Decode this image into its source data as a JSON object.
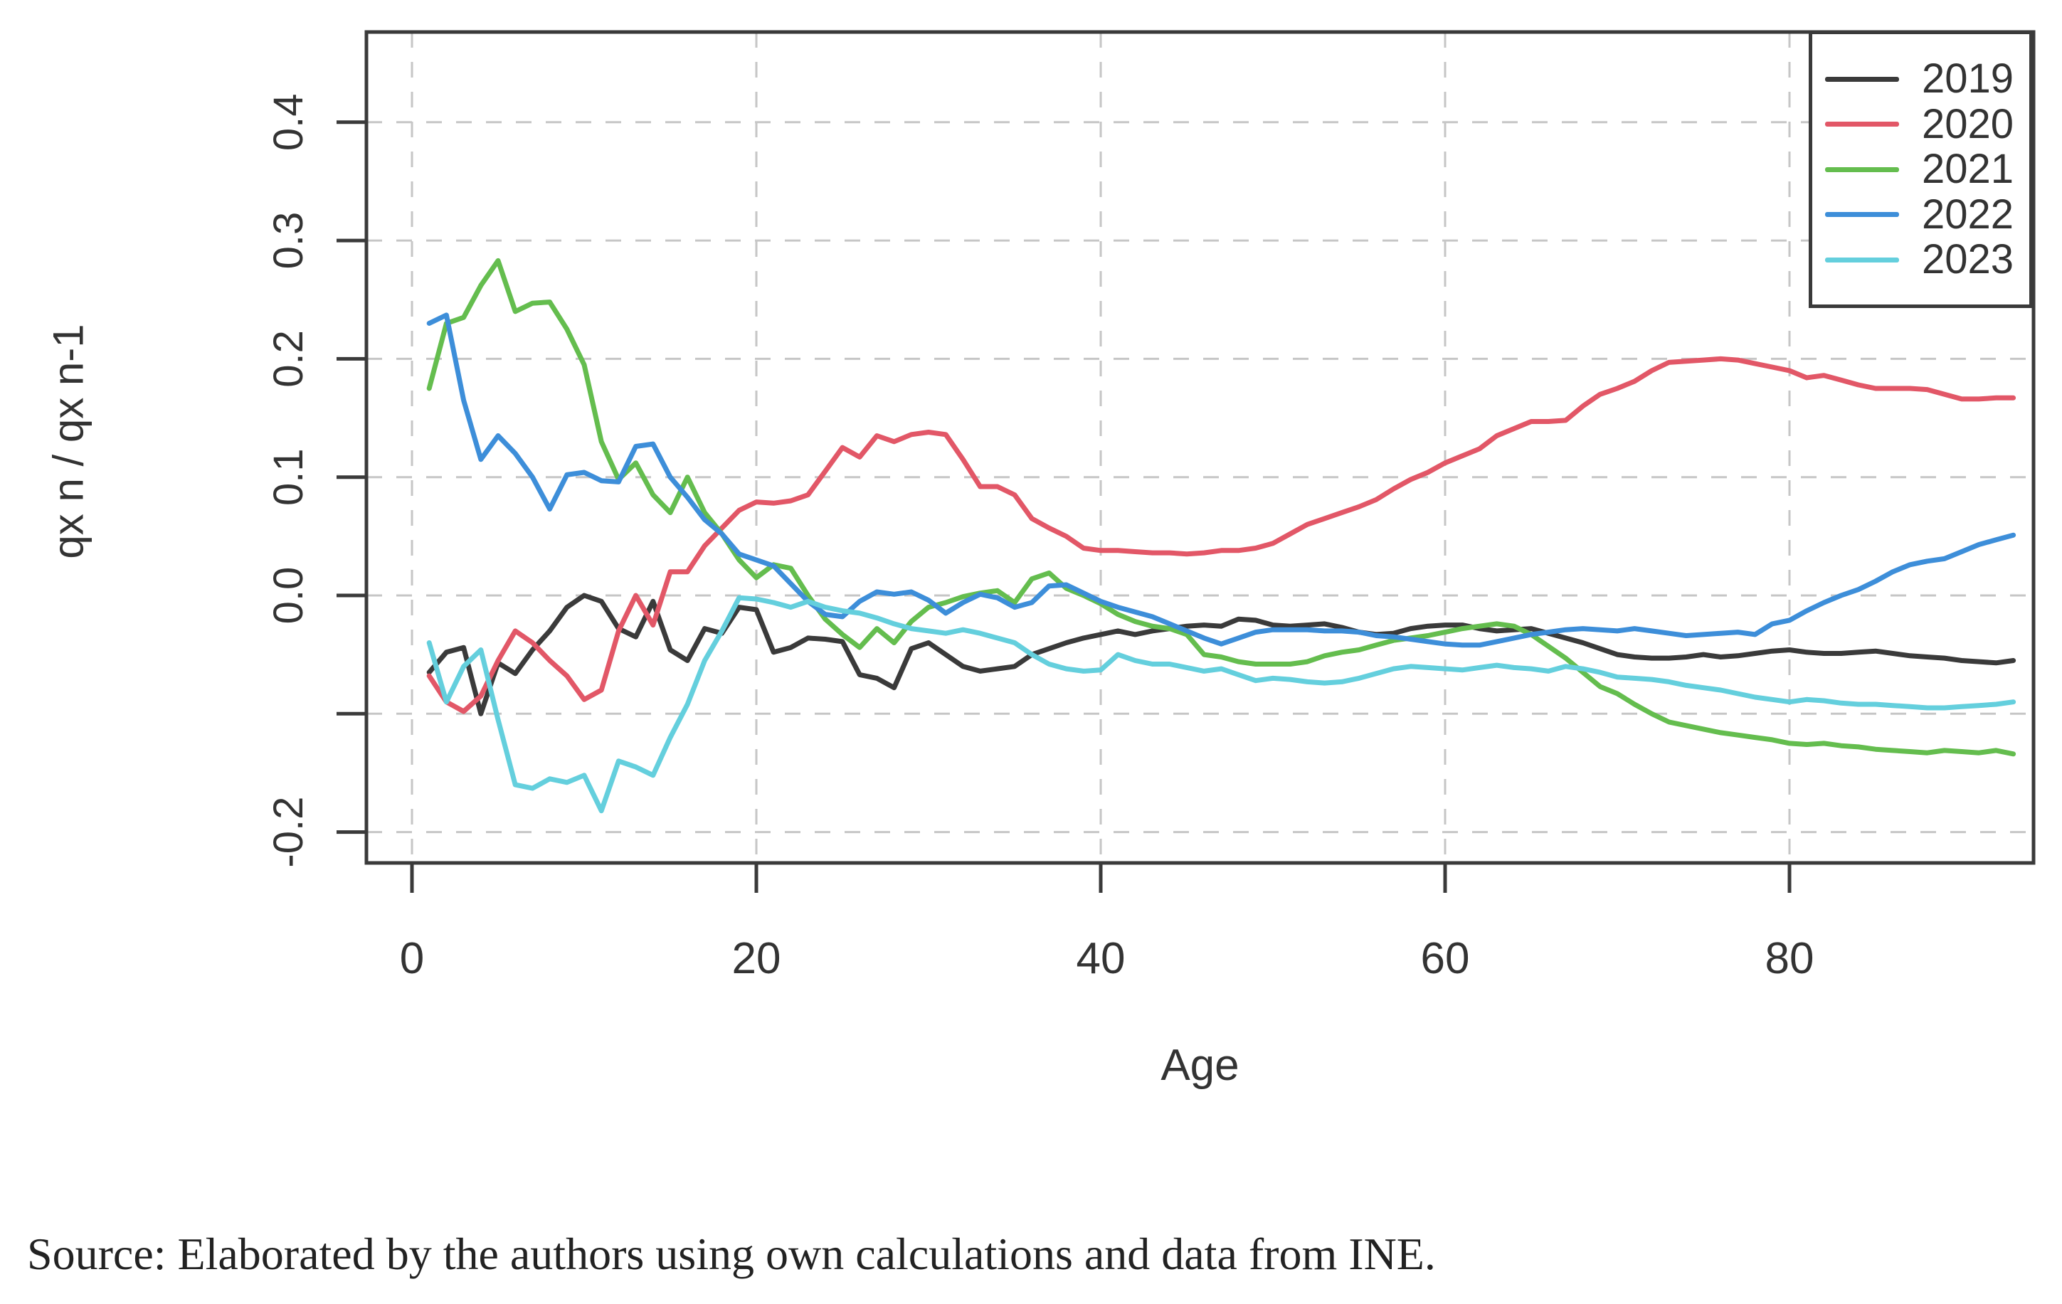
{
  "source_caption": "Source: Elaborated by the authors using own calculations and data from INE.",
  "chart_data": {
    "type": "line",
    "title": "",
    "xlabel": "Age",
    "ylabel": "qx n / qx n-1",
    "xlim": [
      -2.6,
      94.2
    ],
    "ylim": [
      -0.225,
      0.476
    ],
    "grid": "dashed",
    "grid_color": "#c6c6c6",
    "axis_color": "#3a3a3a",
    "tick_label_color": "#333333",
    "legend_position": "top-right",
    "x_ticks": [
      0,
      20,
      40,
      60,
      80
    ],
    "y_ticks": [
      {
        "value": 0.4,
        "label": "0.4"
      },
      {
        "value": 0.3,
        "label": "0.3"
      },
      {
        "value": 0.2,
        "label": "0.2"
      },
      {
        "value": 0.1,
        "label": "0.1"
      },
      {
        "value": 0.0,
        "label": "0.0"
      },
      {
        "value": -0.1,
        "label": ""
      },
      {
        "value": -0.2,
        "label": "-0.2"
      }
    ],
    "age_start": 1,
    "age_step": 1,
    "series": [
      {
        "name": "2019",
        "color": "#3a3a3a",
        "values": [
          -0.065,
          -0.048,
          -0.044,
          -0.1,
          -0.057,
          -0.066,
          -0.046,
          -0.03,
          -0.01,
          0.0,
          -0.005,
          -0.028,
          -0.035,
          -0.005,
          -0.046,
          -0.055,
          -0.028,
          -0.032,
          -0.01,
          -0.012,
          -0.048,
          -0.044,
          -0.036,
          -0.037,
          -0.039,
          -0.067,
          -0.07,
          -0.078,
          -0.045,
          -0.04,
          -0.05,
          -0.06,
          -0.064,
          -0.062,
          -0.06,
          -0.05,
          -0.045,
          -0.04,
          -0.036,
          -0.033,
          -0.03,
          -0.033,
          -0.03,
          -0.028,
          -0.026,
          -0.025,
          -0.026,
          -0.02,
          -0.021,
          -0.025,
          -0.026,
          -0.025,
          -0.024,
          -0.027,
          -0.031,
          -0.033,
          -0.032,
          -0.028,
          -0.026,
          -0.025,
          -0.025,
          -0.028,
          -0.03,
          -0.029,
          -0.028,
          -0.032,
          -0.036,
          -0.04,
          -0.045,
          -0.05,
          -0.052,
          -0.053,
          -0.053,
          -0.052,
          -0.05,
          -0.052,
          -0.051,
          -0.049,
          -0.047,
          -0.046,
          -0.048,
          -0.049,
          -0.049,
          -0.048,
          -0.047,
          -0.049,
          -0.051,
          -0.052,
          -0.053,
          -0.055,
          -0.056,
          -0.057,
          -0.055
        ]
      },
      {
        "name": "2020",
        "color": "#e25767",
        "values": [
          -0.068,
          -0.09,
          -0.098,
          -0.085,
          -0.055,
          -0.03,
          -0.04,
          -0.055,
          -0.068,
          -0.088,
          -0.08,
          -0.03,
          0.0,
          -0.025,
          0.02,
          0.02,
          0.042,
          0.057,
          0.072,
          0.079,
          0.078,
          0.08,
          0.085,
          0.105,
          0.125,
          0.117,
          0.135,
          0.13,
          0.136,
          0.138,
          0.136,
          0.115,
          0.092,
          0.092,
          0.085,
          0.065,
          0.057,
          0.05,
          0.04,
          0.038,
          0.038,
          0.037,
          0.036,
          0.036,
          0.035,
          0.036,
          0.038,
          0.038,
          0.04,
          0.044,
          0.052,
          0.06,
          0.065,
          0.07,
          0.075,
          0.081,
          0.09,
          0.098,
          0.104,
          0.112,
          0.118,
          0.124,
          0.135,
          0.141,
          0.147,
          0.147,
          0.148,
          0.16,
          0.17,
          0.175,
          0.181,
          0.19,
          0.197,
          0.198,
          0.199,
          0.2,
          0.199,
          0.196,
          0.193,
          0.19,
          0.184,
          0.186,
          0.182,
          0.178,
          0.175,
          0.175,
          0.175,
          0.174,
          0.17,
          0.166,
          0.166,
          0.167,
          0.167
        ]
      },
      {
        "name": "2021",
        "color": "#64bd4e",
        "values": [
          0.175,
          0.23,
          0.235,
          0.262,
          0.283,
          0.24,
          0.247,
          0.248,
          0.225,
          0.195,
          0.13,
          0.098,
          0.112,
          0.085,
          0.07,
          0.1,
          0.07,
          0.052,
          0.03,
          0.015,
          0.026,
          0.023,
          0.0,
          -0.02,
          -0.033,
          -0.044,
          -0.028,
          -0.04,
          -0.022,
          -0.01,
          -0.006,
          -0.001,
          0.002,
          0.004,
          -0.006,
          0.014,
          0.019,
          0.006,
          0.0,
          -0.007,
          -0.016,
          -0.022,
          -0.026,
          -0.028,
          -0.033,
          -0.05,
          -0.052,
          -0.056,
          -0.058,
          -0.058,
          -0.058,
          -0.056,
          -0.051,
          -0.048,
          -0.046,
          -0.042,
          -0.038,
          -0.036,
          -0.034,
          -0.031,
          -0.028,
          -0.026,
          -0.024,
          -0.026,
          -0.033,
          -0.043,
          -0.053,
          -0.065,
          -0.077,
          -0.083,
          -0.092,
          -0.1,
          -0.107,
          -0.11,
          -0.113,
          -0.116,
          -0.118,
          -0.12,
          -0.122,
          -0.125,
          -0.126,
          -0.125,
          -0.127,
          -0.128,
          -0.13,
          -0.131,
          -0.132,
          -0.133,
          -0.131,
          -0.132,
          -0.133,
          -0.131,
          -0.134
        ]
      },
      {
        "name": "2022",
        "color": "#3d8ed9",
        "values": [
          0.23,
          0.237,
          0.165,
          0.115,
          0.135,
          0.12,
          0.1,
          0.073,
          0.102,
          0.104,
          0.097,
          0.096,
          0.126,
          0.128,
          0.1,
          0.083,
          0.064,
          0.052,
          0.035,
          0.03,
          0.025,
          0.01,
          -0.005,
          -0.016,
          -0.018,
          -0.005,
          0.003,
          0.001,
          0.003,
          -0.004,
          -0.015,
          -0.006,
          0.001,
          -0.002,
          -0.01,
          -0.006,
          0.008,
          0.009,
          0.002,
          -0.005,
          -0.01,
          -0.014,
          -0.018,
          -0.024,
          -0.03,
          -0.036,
          -0.041,
          -0.036,
          -0.031,
          -0.029,
          -0.029,
          -0.029,
          -0.03,
          -0.03,
          -0.031,
          -0.034,
          -0.035,
          -0.037,
          -0.039,
          -0.041,
          -0.042,
          -0.042,
          -0.039,
          -0.036,
          -0.033,
          -0.031,
          -0.029,
          -0.028,
          -0.029,
          -0.03,
          -0.028,
          -0.03,
          -0.032,
          -0.034,
          -0.033,
          -0.032,
          -0.031,
          -0.033,
          -0.024,
          -0.021,
          -0.013,
          -0.006,
          0.0,
          0.005,
          0.012,
          0.02,
          0.026,
          0.029,
          0.031,
          0.037,
          0.043,
          0.047,
          0.051
        ]
      },
      {
        "name": "2023",
        "color": "#64cfdd",
        "values": [
          -0.04,
          -0.09,
          -0.06,
          -0.046,
          -0.105,
          -0.16,
          -0.163,
          -0.155,
          -0.158,
          -0.152,
          -0.182,
          -0.14,
          -0.145,
          -0.152,
          -0.12,
          -0.092,
          -0.055,
          -0.03,
          -0.002,
          -0.003,
          -0.006,
          -0.01,
          -0.005,
          -0.01,
          -0.013,
          -0.015,
          -0.019,
          -0.024,
          -0.028,
          -0.03,
          -0.032,
          -0.029,
          -0.032,
          -0.036,
          -0.04,
          -0.05,
          -0.058,
          -0.062,
          -0.064,
          -0.063,
          -0.05,
          -0.055,
          -0.058,
          -0.058,
          -0.061,
          -0.064,
          -0.062,
          -0.067,
          -0.072,
          -0.07,
          -0.071,
          -0.073,
          -0.074,
          -0.073,
          -0.07,
          -0.066,
          -0.062,
          -0.06,
          -0.061,
          -0.062,
          -0.063,
          -0.061,
          -0.059,
          -0.061,
          -0.062,
          -0.064,
          -0.06,
          -0.062,
          -0.065,
          -0.069,
          -0.07,
          -0.071,
          -0.073,
          -0.076,
          -0.078,
          -0.08,
          -0.083,
          -0.086,
          -0.088,
          -0.09,
          -0.088,
          -0.089,
          -0.091,
          -0.092,
          -0.092,
          -0.093,
          -0.094,
          -0.095,
          -0.095,
          -0.094,
          -0.093,
          -0.092,
          -0.09
        ]
      }
    ]
  }
}
